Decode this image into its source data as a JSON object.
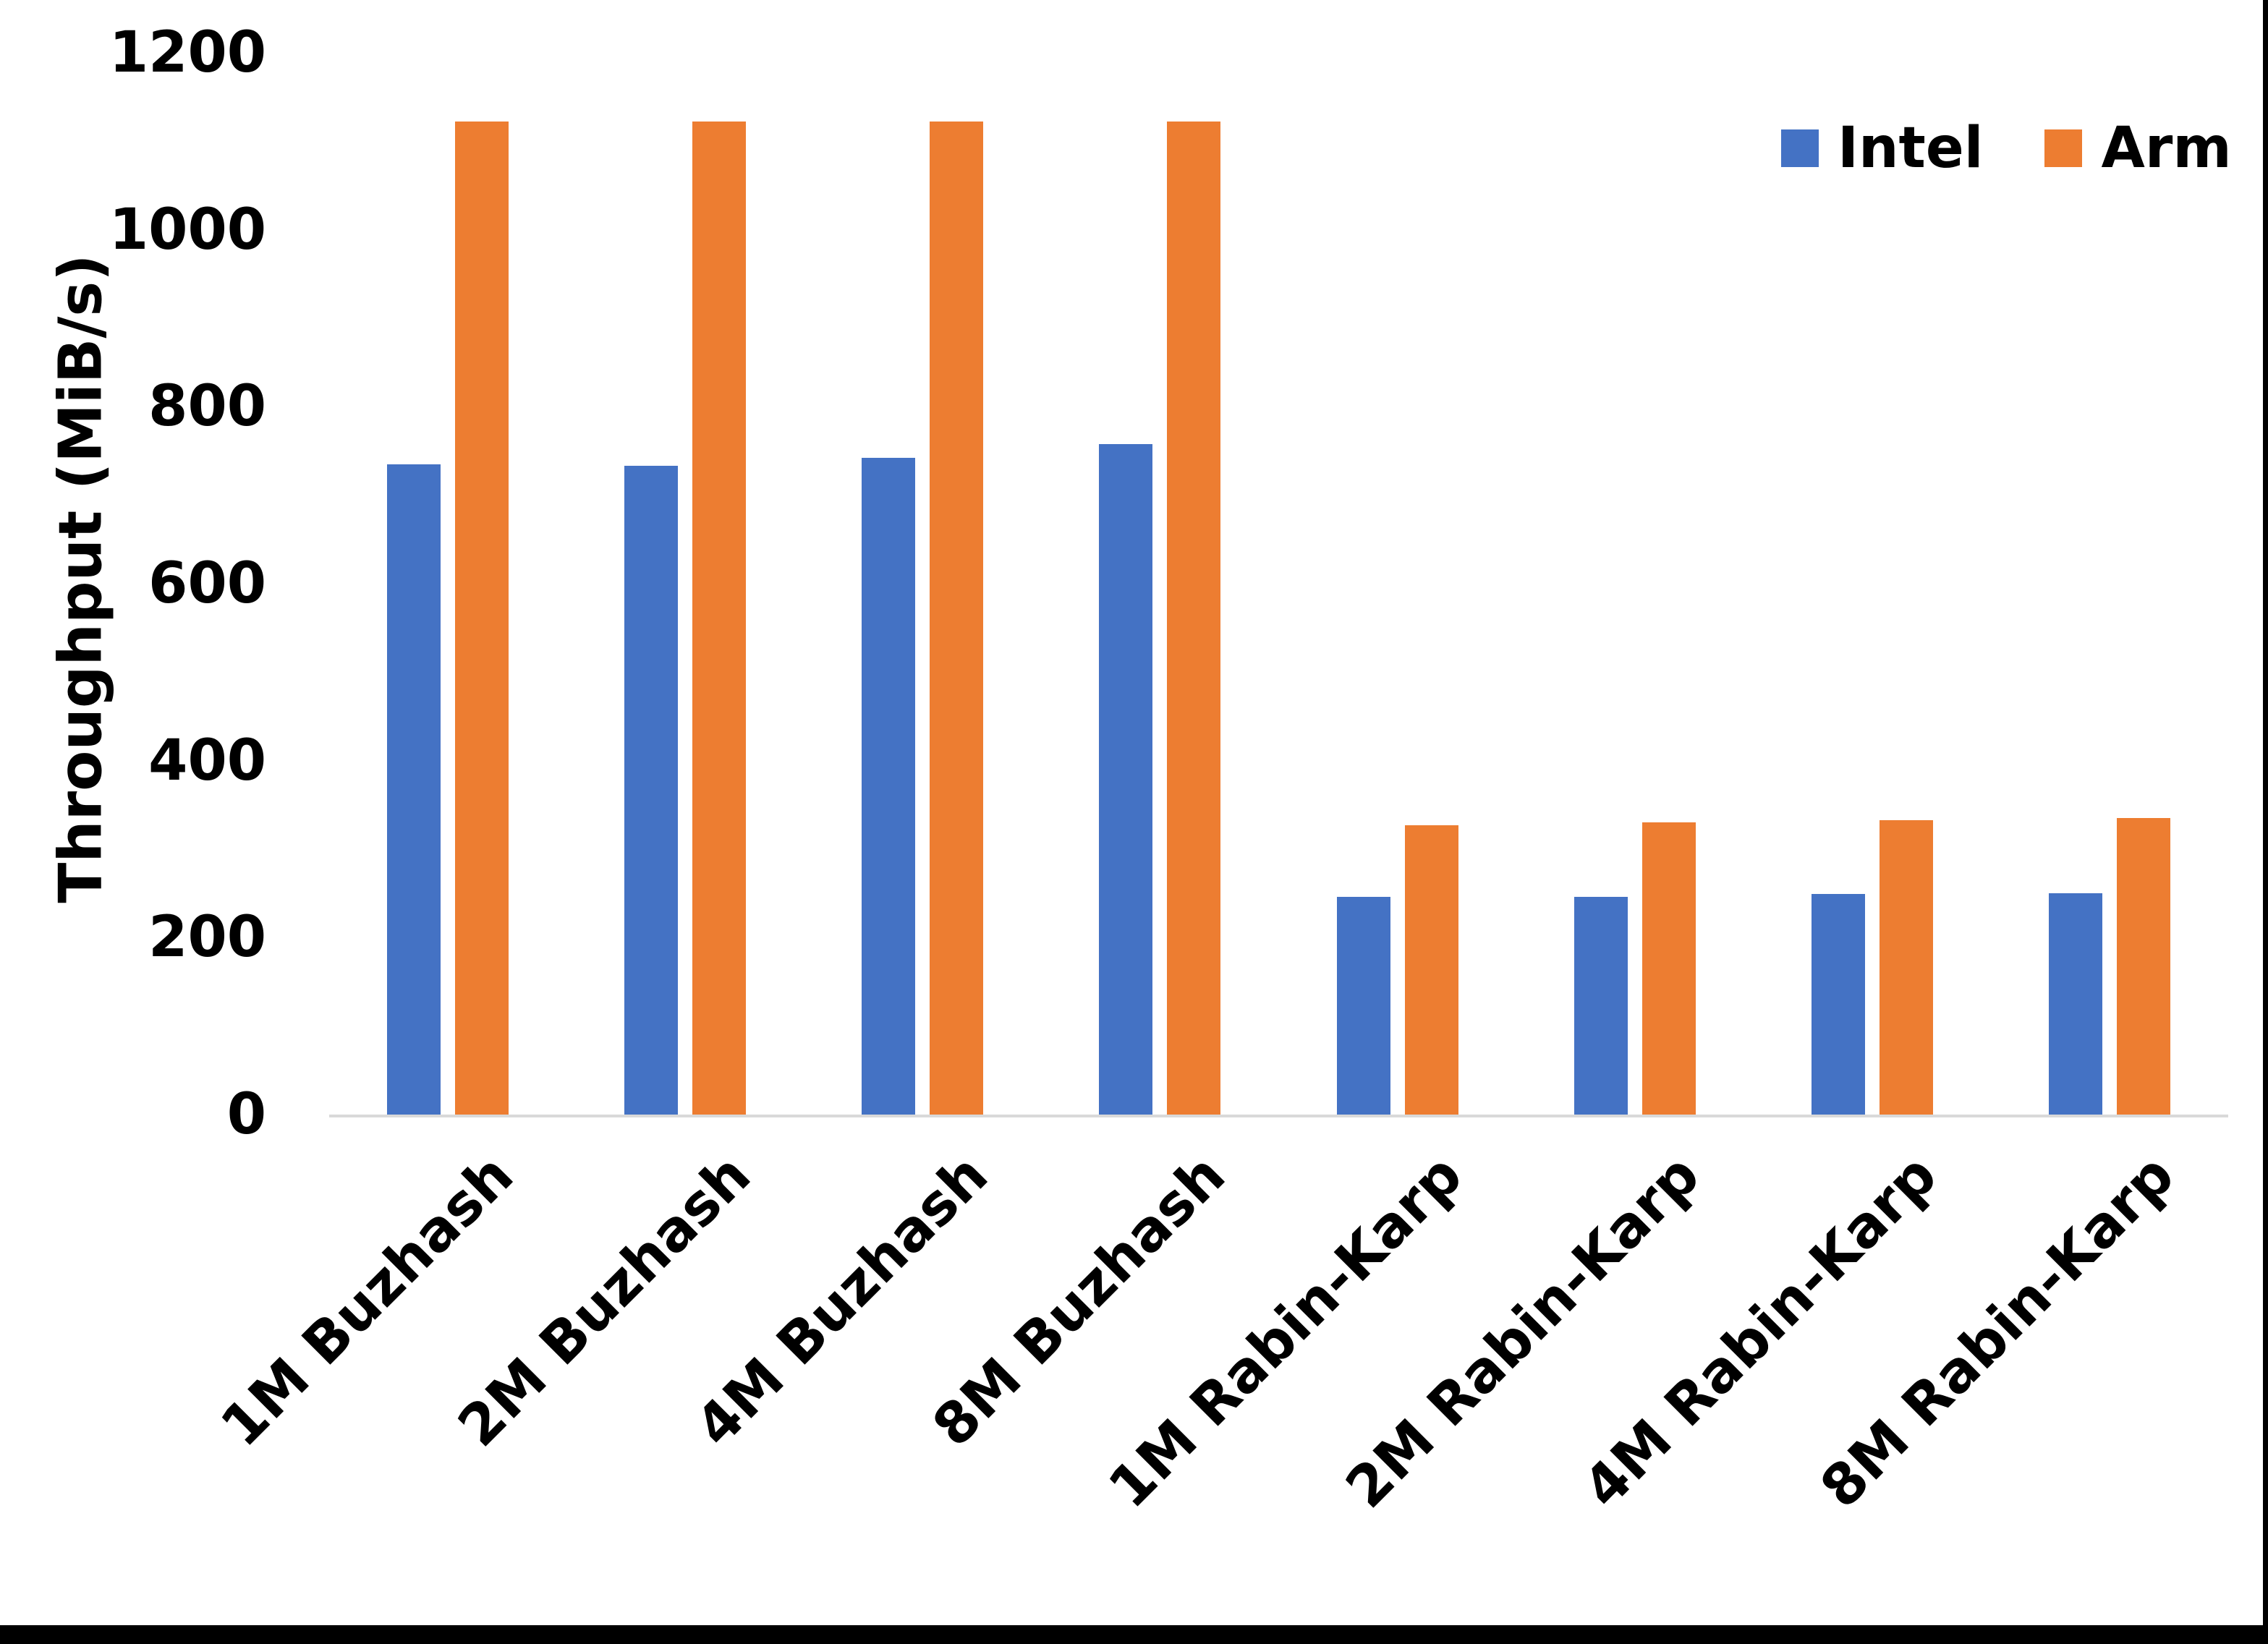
{
  "chart_data": {
    "type": "bar",
    "title": "",
    "ylabel": "Throughput (MiB/s)",
    "xlabel": "",
    "categories": [
      "1M Buzhash",
      "2M Buzhash",
      "4M Buzhash",
      "8M Buzhash",
      "1M Rabin-Karp",
      "2M Rabin-Karp",
      "4M Rabin-Karp",
      "8M Rabin-Karp"
    ],
    "series": [
      {
        "name": "Intel",
        "color": "#4472C4",
        "values": [
          735,
          733,
          742,
          758,
          246,
          246,
          249,
          250
        ]
      },
      {
        "name": "Arm",
        "color": "#ED7D31",
        "values": [
          1122,
          1122,
          1122,
          1122,
          327,
          330,
          333,
          335
        ]
      }
    ],
    "ylim": [
      0,
      1200
    ],
    "yticks": [
      0,
      200,
      400,
      600,
      800,
      1000,
      1200
    ],
    "grid": false,
    "legend_position": "top-right",
    "axis_line_color": "#D9D9D9",
    "text_color": "#000000",
    "frame_color": "#000000"
  }
}
